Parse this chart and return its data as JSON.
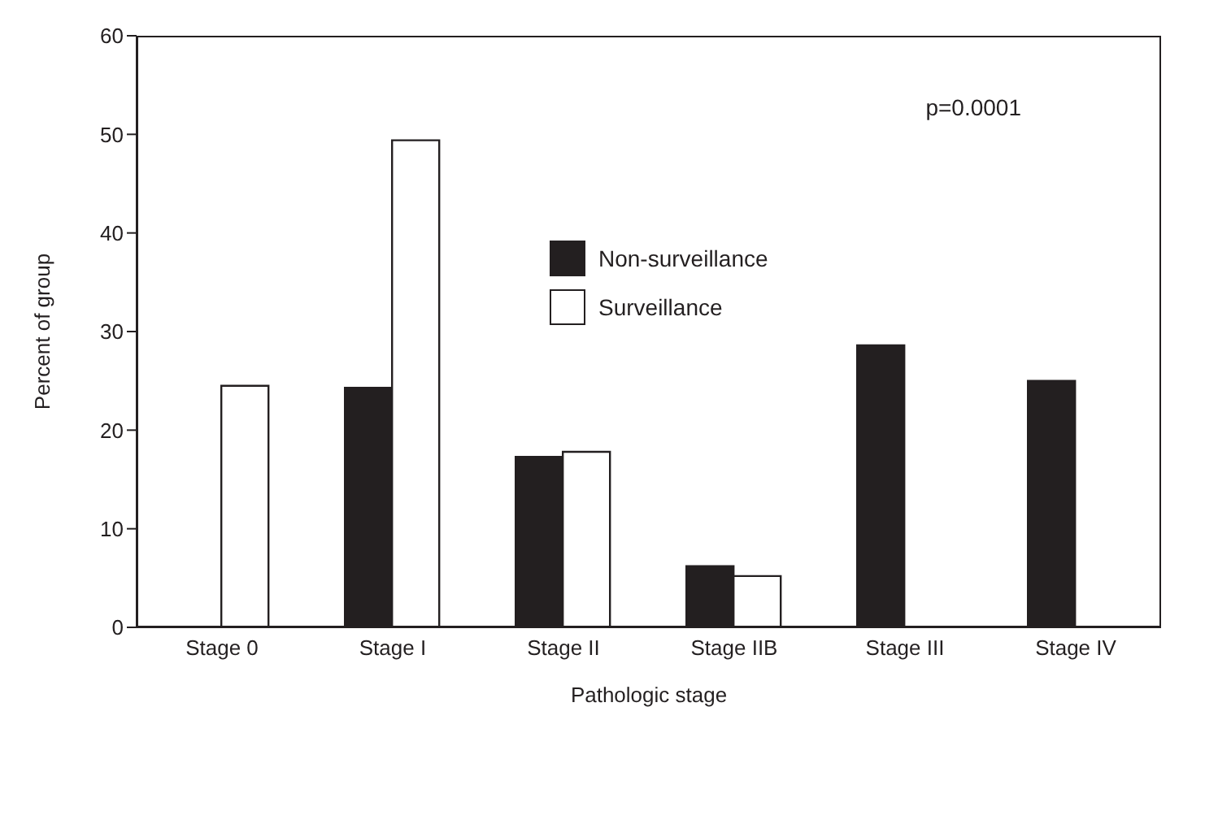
{
  "chart_data": {
    "type": "bar",
    "xlabel": "Pathologic stage",
    "ylabel": "Percent of group",
    "categories": [
      "Stage 0",
      "Stage I",
      "Stage II",
      "Stage IIB",
      "Stage III",
      "Stage IV"
    ],
    "series": [
      {
        "name": "Non-surveillance",
        "color": "#231f20",
        "values": [
          0,
          24.3,
          17.3,
          6.2,
          28.6,
          25.0
        ]
      },
      {
        "name": "Surveillance",
        "color": "#ffffff",
        "values": [
          24.5,
          49.4,
          17.8,
          5.2,
          0,
          0
        ]
      }
    ],
    "ylim": [
      0,
      60
    ],
    "yticks": [
      0,
      10,
      20,
      30,
      40,
      50,
      60
    ],
    "legend": "top",
    "annotations": [
      "p=0.0001"
    ]
  }
}
